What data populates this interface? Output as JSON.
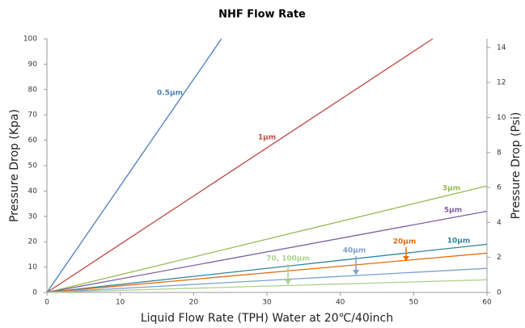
{
  "chart_data": {
    "type": "line",
    "title": "NHF Flow Rate",
    "xlabel": "Liquid Flow Rate (TPH) Water at 20℃/40inch",
    "ylabel": "Pressure Drop (Kpa)",
    "y2label": "Pressure Drop (Psi)",
    "xlim": [
      0,
      60
    ],
    "xticks": [
      0,
      10,
      20,
      30,
      40,
      50,
      60
    ],
    "ylim": [
      0,
      100
    ],
    "yticks": [
      0,
      10,
      20,
      30,
      40,
      50,
      60,
      70,
      80,
      90,
      100
    ],
    "y2lim": [
      0,
      14.5
    ],
    "y2ticks": [
      0,
      2,
      4,
      6,
      8,
      10,
      12,
      14
    ],
    "grid": false,
    "series": [
      {
        "name": "0.5μm",
        "color": "#4a7ebb",
        "x": [
          0,
          23.8
        ],
        "values": [
          0,
          100
        ]
      },
      {
        "name": "1μm",
        "color": "#be4b48",
        "x": [
          0,
          52.6
        ],
        "values": [
          0,
          100
        ]
      },
      {
        "name": "3μm",
        "color": "#98b954",
        "x": [
          0,
          60
        ],
        "values": [
          0,
          42
        ]
      },
      {
        "name": "5μm",
        "color": "#7d60a0",
        "x": [
          0,
          60
        ],
        "values": [
          0,
          32
        ]
      },
      {
        "name": "10μm",
        "color": "#31859c",
        "x": [
          0,
          60
        ],
        "values": [
          0,
          19
        ]
      },
      {
        "name": "20μm",
        "color": "#e46c0a",
        "x": [
          0,
          60
        ],
        "values": [
          0,
          15.5
        ]
      },
      {
        "name": "40μm",
        "color": "#7f9fcf",
        "x": [
          0,
          60
        ],
        "values": [
          0,
          9.5
        ]
      },
      {
        "name": "70, 100μm",
        "color": "#a9d18e",
        "x": [
          0,
          60
        ],
        "values": [
          0,
          5
        ]
      }
    ]
  }
}
